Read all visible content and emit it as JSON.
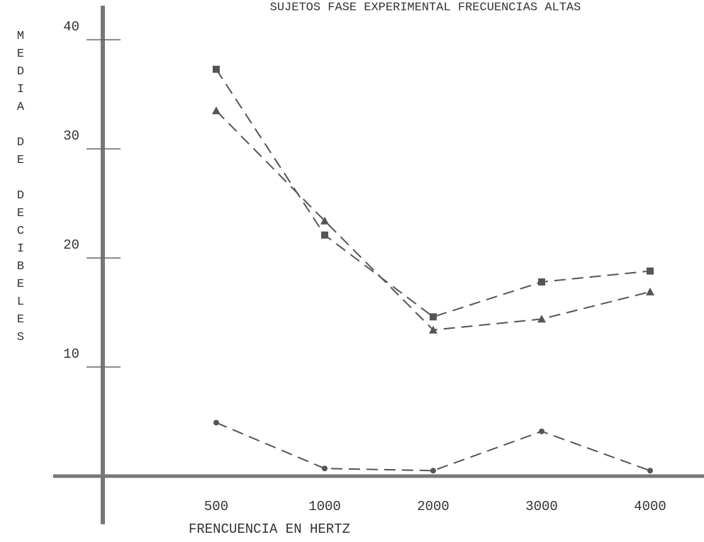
{
  "chart_data": {
    "type": "line",
    "title": "SUJETOS FASE EXPERIMENTAL FRECUENCIAS ALTAS",
    "y_label": "MEDIA DE DECIBELES",
    "x_label": "FRENCUENCIA EN HERTZ",
    "categories": [
      "500",
      "1000",
      "2000",
      "3000",
      "4000"
    ],
    "series": [
      {
        "color": "#555555",
        "marker": "square",
        "values": [
          37.3,
          22.1,
          14.6,
          17.8,
          18.8
        ]
      },
      {
        "color": "#555555",
        "marker": "triangle",
        "values": [
          33.5,
          23.4,
          13.4,
          14.4,
          16.9
        ]
      },
      {
        "color": "#555555",
        "marker": "circle",
        "values": [
          4.9,
          0.7,
          0.5,
          4.1,
          0.5
        ]
      }
    ],
    "ylim": [
      0,
      43
    ],
    "yticks": [
      10,
      20,
      30,
      40
    ],
    "grid": false
  }
}
